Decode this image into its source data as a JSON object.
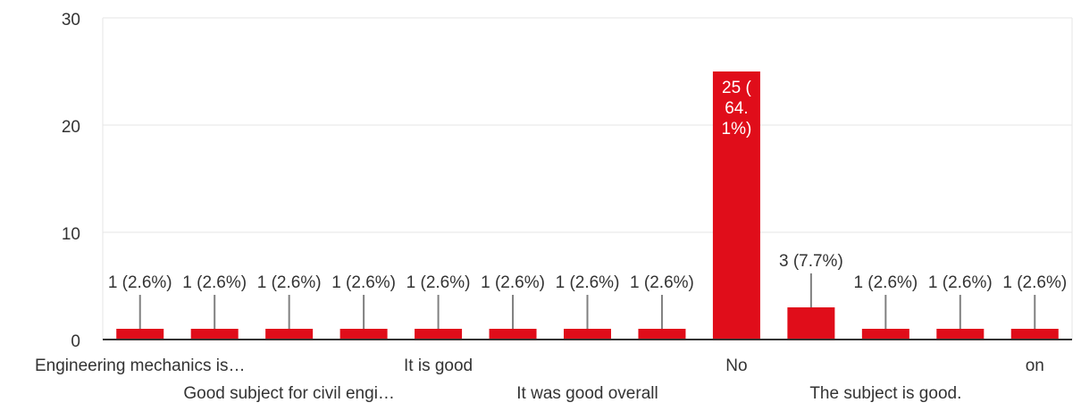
{
  "chart_data": {
    "type": "bar",
    "title": "",
    "xlabel": "",
    "ylabel": "",
    "ylim": [
      0,
      30
    ],
    "yticks": [
      "0",
      "10",
      "20",
      "30"
    ],
    "grid": true,
    "legend": "none",
    "bar_color": "#e00d1a",
    "categories": [
      "c1",
      "c2",
      "c3",
      "c4",
      "c5",
      "c6",
      "c7",
      "c8",
      "c9",
      "c10",
      "c11",
      "c12",
      "c13"
    ],
    "visible_category_labels": [
      {
        "index": 0,
        "text": "Engineering mechanics is…",
        "row": 1
      },
      {
        "index": 2,
        "text": "Good subject for civil engi…",
        "row": 2
      },
      {
        "index": 4,
        "text": "It is good",
        "row": 1
      },
      {
        "index": 6,
        "text": "It was good overall",
        "row": 2
      },
      {
        "index": 8,
        "text": "No",
        "row": 1
      },
      {
        "index": 10,
        "text": "The subject is good.",
        "row": 2
      },
      {
        "index": 12,
        "text": "on",
        "row": 1
      }
    ],
    "values": [
      1,
      1,
      1,
      1,
      1,
      1,
      1,
      1,
      25,
      3,
      1,
      1,
      1
    ],
    "data_labels": [
      "1 (2.6%)",
      "1 (2.6%)",
      "1 (2.6%)",
      "1 (2.6%)",
      "1 (2.6%)",
      "1 (2.6%)",
      "1 (2.6%)",
      "1 (2.6%)",
      "25 (64.1%)",
      "3 (7.7%)",
      "1 (2.6%)",
      "1 (2.6%)",
      "1 (2.6%)"
    ]
  }
}
